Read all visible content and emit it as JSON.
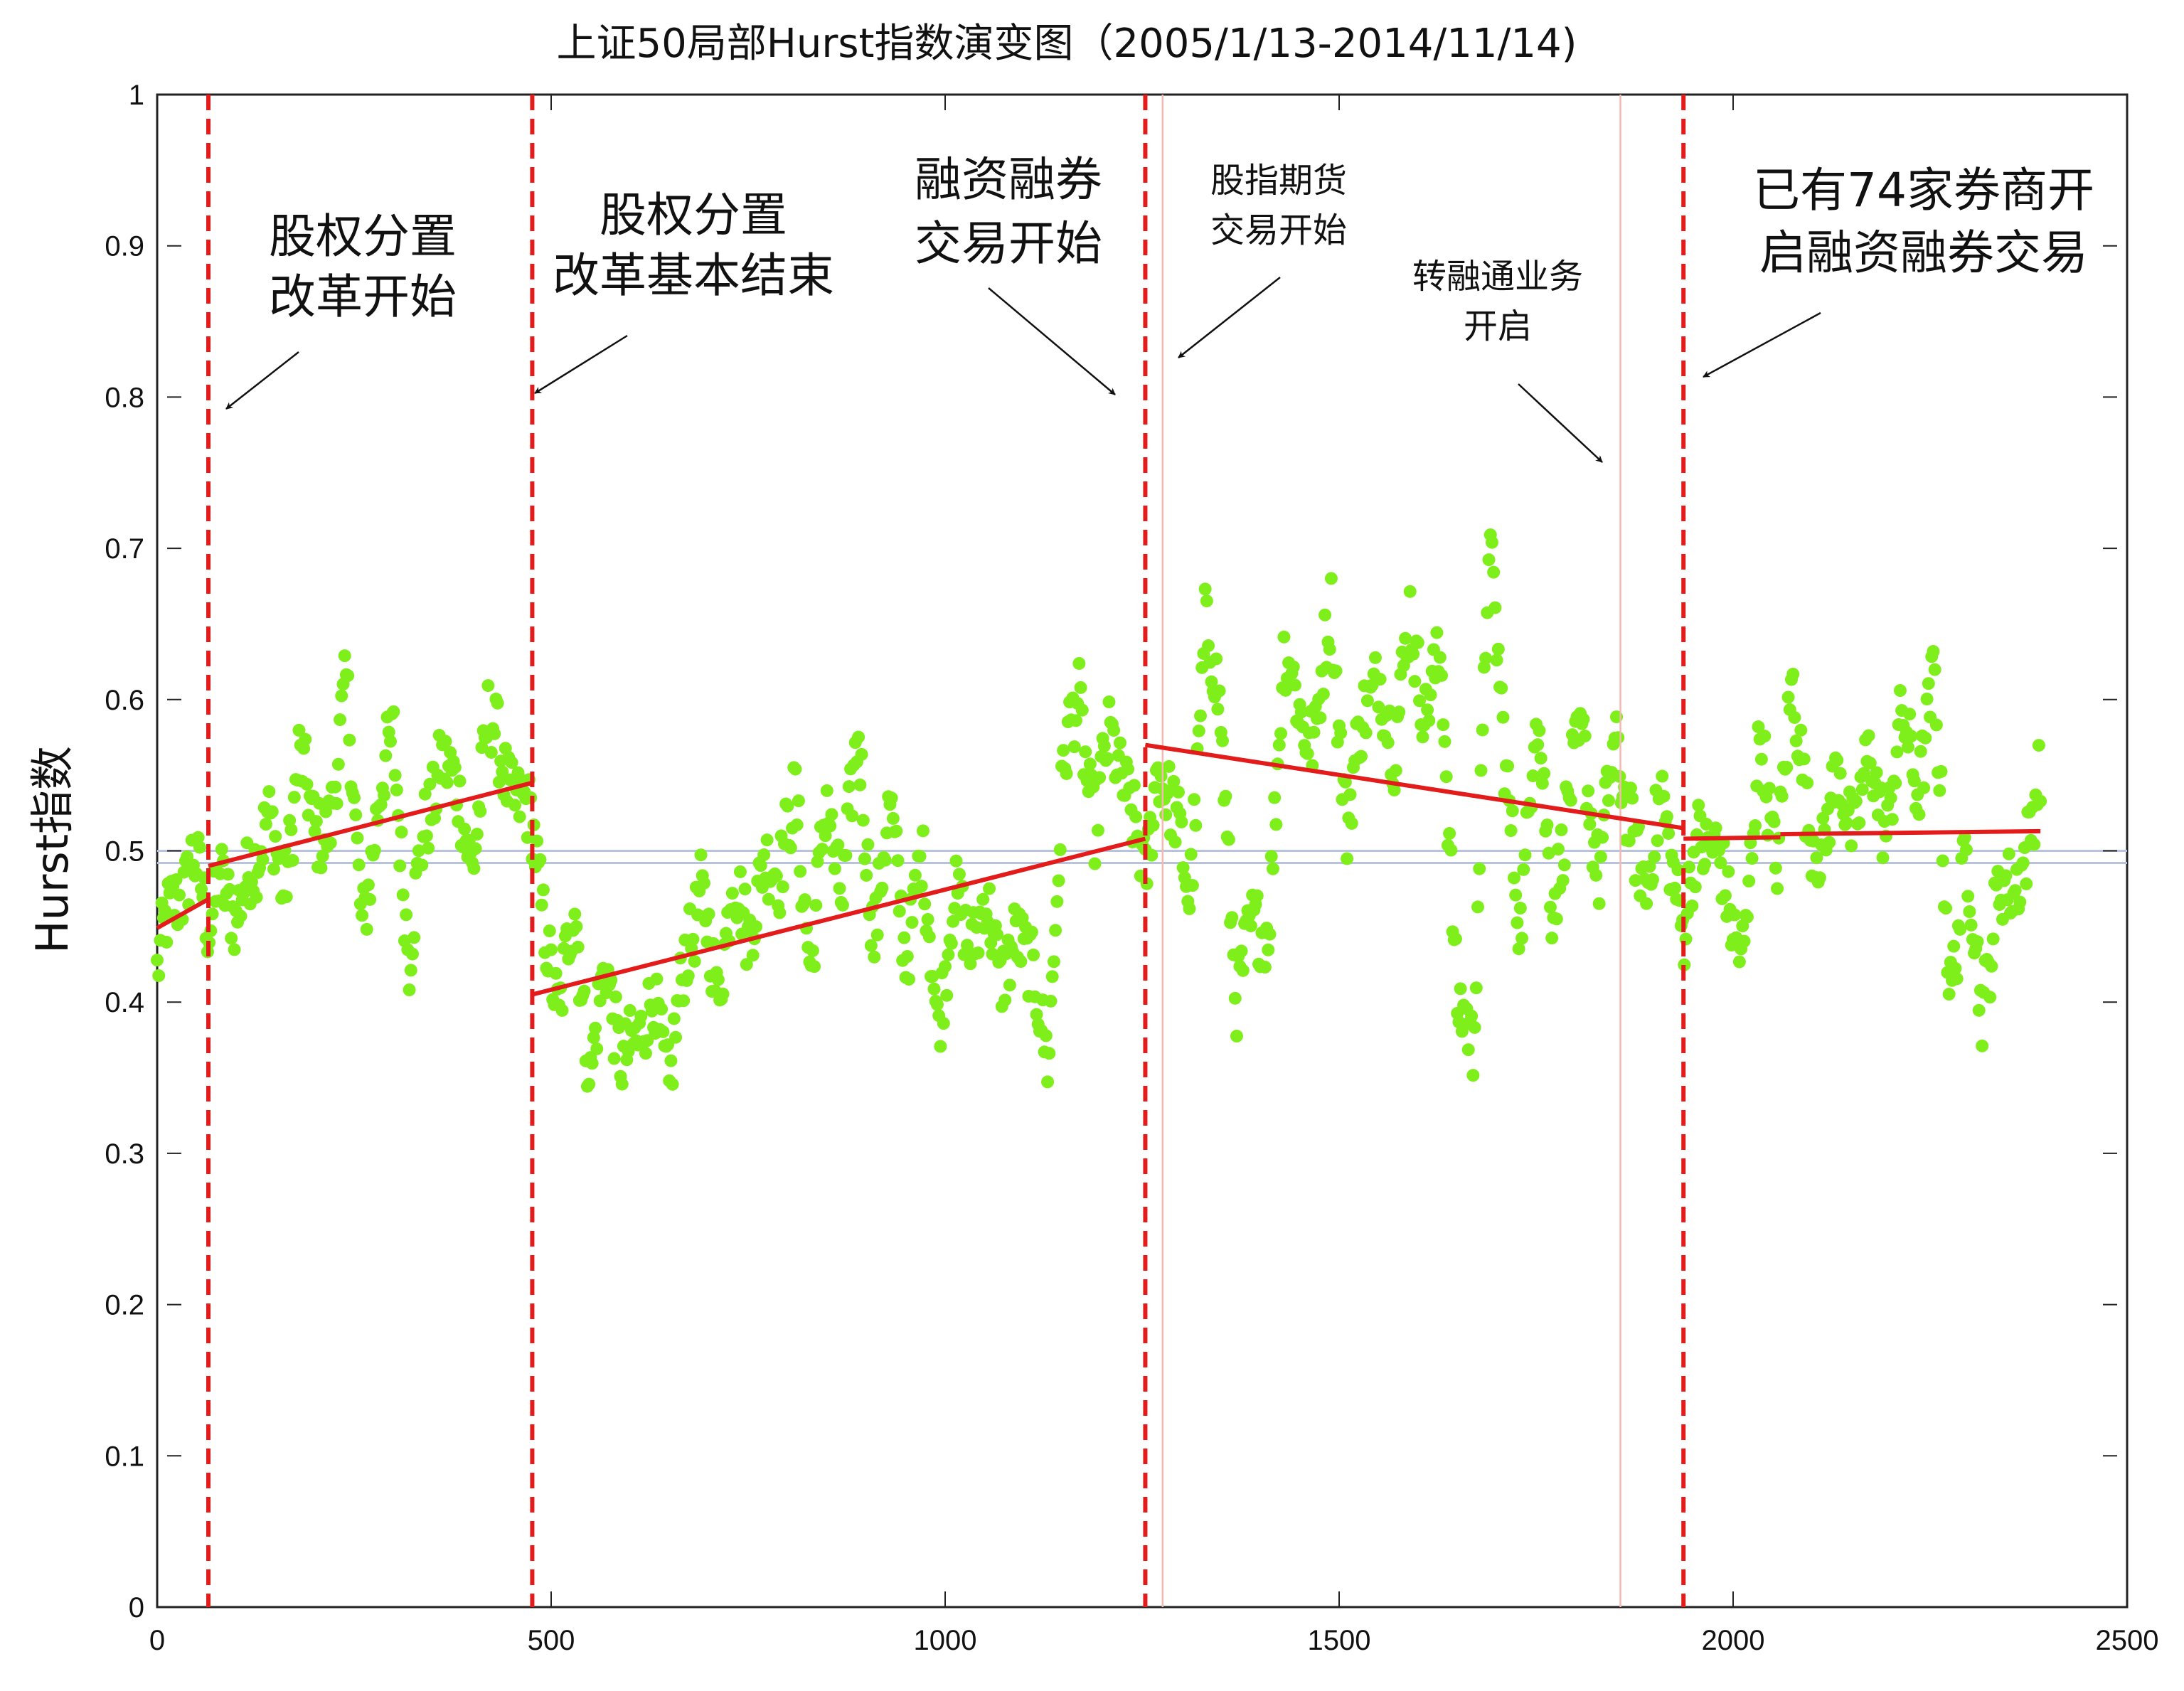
{
  "chart_data": {
    "type": "scatter",
    "title": "上证50局部Hurst指数演变图（2005/1/13-2014/11/14)",
    "xlabel": "",
    "ylabel": "Hurst指数",
    "xlim": [
      0,
      2500
    ],
    "ylim": [
      0,
      1
    ],
    "x_ticks": [
      "0",
      "500",
      "1000",
      "1500",
      "2000",
      "2500"
    ],
    "y_ticks": [
      "0",
      "0.1",
      "0.2",
      "0.3",
      "0.4",
      "0.5",
      "0.6",
      "0.7",
      "0.8",
      "0.9",
      "1"
    ],
    "colors": {
      "points": "#7fef1c",
      "trend": "#e31b1b",
      "event_line": "#e31b1b",
      "faint_event_line": "#f4b8b0",
      "reference_line": "#b8c4de",
      "axis": "#222222",
      "grid": "#cfcfcf"
    },
    "reference_lines": [
      0.492,
      0.5
    ],
    "event_lines": [
      {
        "x": 65,
        "style": "dashed"
      },
      {
        "x": 476,
        "style": "dashed"
      },
      {
        "x": 1254,
        "style": "dashed"
      },
      {
        "x": 1276,
        "style": "faint"
      },
      {
        "x": 1857,
        "style": "faint"
      },
      {
        "x": 1937,
        "style": "dashed"
      }
    ],
    "trend_segments": [
      {
        "x": [
          0,
          65
        ],
        "y": [
          0.449,
          0.468
        ]
      },
      {
        "x": [
          65,
          476
        ],
        "y": [
          0.49,
          0.545
        ]
      },
      {
        "x": [
          476,
          1254
        ],
        "y": [
          0.405,
          0.508
        ]
      },
      {
        "x": [
          1254,
          1937
        ],
        "y": [
          0.57,
          0.515
        ]
      },
      {
        "x": [
          1937,
          2060
        ],
        "y": [
          0.508,
          0.509
        ]
      },
      {
        "x": [
          2060,
          2390
        ],
        "y": [
          0.511,
          0.513
        ]
      }
    ],
    "series_trace": {
      "x": [
        0,
        25,
        45,
        65,
        80,
        100,
        120,
        140,
        160,
        180,
        200,
        220,
        240,
        260,
        280,
        300,
        320,
        340,
        360,
        380,
        400,
        420,
        440,
        460,
        476,
        495,
        510,
        530,
        550,
        570,
        590,
        610,
        630,
        650,
        670,
        690,
        710,
        730,
        750,
        770,
        790,
        810,
        830,
        850,
        870,
        890,
        910,
        930,
        950,
        970,
        990,
        1010,
        1030,
        1050,
        1070,
        1090,
        1110,
        1130,
        1150,
        1170,
        1190,
        1210,
        1230,
        1254,
        1270,
        1290,
        1310,
        1330,
        1350,
        1370,
        1390,
        1410,
        1430,
        1450,
        1470,
        1490,
        1510,
        1530,
        1550,
        1570,
        1590,
        1610,
        1630,
        1650,
        1670,
        1690,
        1710,
        1730,
        1750,
        1770,
        1790,
        1810,
        1830,
        1850,
        1870,
        1890,
        1910,
        1937,
        1955,
        1975,
        1995,
        2015,
        2035,
        2055,
        2075,
        2095,
        2115,
        2135,
        2155,
        2175,
        2195,
        2215,
        2235,
        2255,
        2275,
        2295,
        2315,
        2335,
        2355,
        2375,
        2390
      ],
      "y": [
        0.42,
        0.47,
        0.5,
        0.44,
        0.5,
        0.44,
        0.5,
        0.52,
        0.47,
        0.57,
        0.5,
        0.53,
        0.6,
        0.46,
        0.52,
        0.58,
        0.43,
        0.51,
        0.57,
        0.53,
        0.5,
        0.58,
        0.56,
        0.53,
        0.51,
        0.45,
        0.38,
        0.47,
        0.35,
        0.42,
        0.37,
        0.36,
        0.42,
        0.33,
        0.44,
        0.47,
        0.4,
        0.49,
        0.43,
        0.51,
        0.47,
        0.55,
        0.41,
        0.54,
        0.47,
        0.57,
        0.45,
        0.52,
        0.44,
        0.49,
        0.39,
        0.47,
        0.43,
        0.48,
        0.4,
        0.46,
        0.41,
        0.37,
        0.55,
        0.6,
        0.52,
        0.57,
        0.55,
        0.47,
        0.57,
        0.52,
        0.47,
        0.65,
        0.58,
        0.41,
        0.44,
        0.46,
        0.62,
        0.6,
        0.57,
        0.66,
        0.52,
        0.58,
        0.63,
        0.55,
        0.67,
        0.58,
        0.63,
        0.4,
        0.36,
        0.72,
        0.55,
        0.46,
        0.59,
        0.47,
        0.53,
        0.57,
        0.49,
        0.56,
        0.53,
        0.46,
        0.55,
        0.43,
        0.52,
        0.5,
        0.46,
        0.44,
        0.57,
        0.5,
        0.6,
        0.53,
        0.49,
        0.56,
        0.51,
        0.56,
        0.52,
        0.58,
        0.55,
        0.61,
        0.41,
        0.5,
        0.39,
        0.48,
        0.46,
        0.52,
        0.55
      ]
    },
    "annotations": [
      {
        "lines": [
          "股权分置",
          "改革开始"
        ],
        "size": "large"
      },
      {
        "lines": [
          "股权分置",
          "改革基本结束"
        ],
        "size": "large"
      },
      {
        "lines": [
          "融资融券",
          "交易开始"
        ],
        "size": "large"
      },
      {
        "lines": [
          "股指期货",
          "交易开始"
        ],
        "size": "small"
      },
      {
        "lines": [
          "转融通业务",
          "开启"
        ],
        "size": "small"
      },
      {
        "lines": [
          "已有74家券商开",
          "启融资融券交易"
        ],
        "size": "large"
      }
    ]
  }
}
